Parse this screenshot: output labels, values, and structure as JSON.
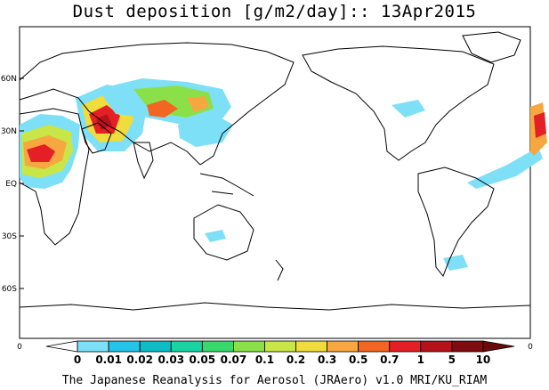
{
  "title": "Dust deposition [g/m2/day]:: 13Apr2015",
  "credit": "The Japanese Reanalysis for Aerosol (JRAero) v1.0 MRI/KU_RIAM",
  "map": {
    "lat_labels": [
      "60N",
      "30N",
      "EQ",
      "30S",
      "60S"
    ],
    "edge_left_label": "0",
    "edge_right_label": "0"
  },
  "colorbar": {
    "labels": [
      "0",
      "0.01",
      "0.02",
      "0.03",
      "0.05",
      "0.07",
      "0.1",
      "0.2",
      "0.3",
      "0.5",
      "0.7",
      "1",
      "5",
      "10"
    ],
    "colors": [
      "#ffffff",
      "#7ee0f7",
      "#27c4ea",
      "#0fbcc6",
      "#19d3a2",
      "#38d86d",
      "#8be04a",
      "#c8e645",
      "#f0dc3c",
      "#f7a640",
      "#f26522",
      "#e41f26",
      "#b5121b",
      "#7f0c11",
      "#690b0b"
    ]
  }
}
